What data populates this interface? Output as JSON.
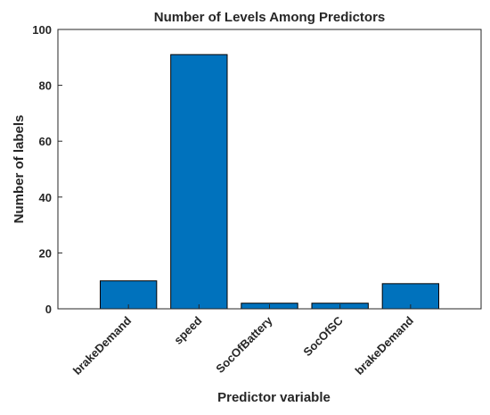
{
  "chart_data": {
    "type": "bar",
    "title": "Number of Levels Among Predictors",
    "xlabel": "Predictor variable",
    "ylabel": "Number of labels",
    "categories": [
      "brakeDemand",
      "speed",
      "SocOfBattery",
      "SocOfSC",
      "brakeDemand"
    ],
    "values": [
      10,
      91,
      2,
      2,
      9
    ],
    "ylim": [
      0,
      100
    ],
    "yticks": [
      0,
      20,
      40,
      60,
      80,
      100
    ],
    "grid": false,
    "legend": "none",
    "bar_color": "#0072BD",
    "bar_edge_color": "#000000"
  }
}
